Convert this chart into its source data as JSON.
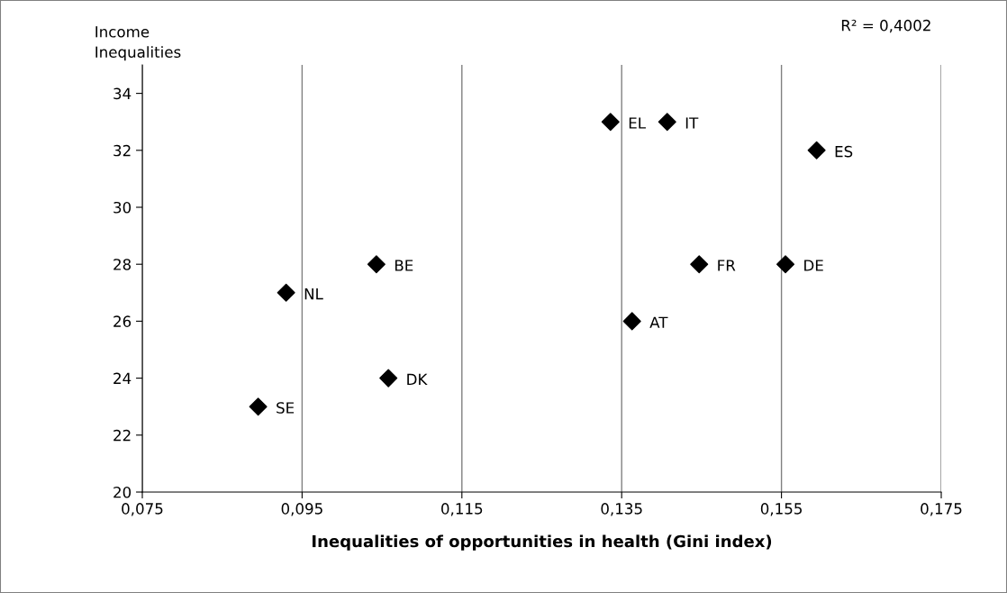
{
  "chart_data": {
    "type": "scatter",
    "xlabel": "Inequalities of opportunities in health (Gini index)",
    "ylabel": "Income\nInequalities",
    "series": [
      {
        "color": "#000000",
        "x": [
          0.0895,
          0.093,
          0.1043,
          0.1058,
          0.1336,
          0.1407,
          0.1363,
          0.1447,
          0.1555,
          0.1594
        ],
        "values": [
          23,
          27,
          28,
          24,
          33,
          33,
          26,
          28,
          28,
          32
        ]
      }
    ],
    "marker": "diamond",
    "xlim": [
      0.075,
      0.175
    ],
    "xticks": [
      {
        "value": 0.075,
        "label": "0,075"
      },
      {
        "value": 0.095,
        "label": "0,095"
      },
      {
        "value": 0.115,
        "label": "0,115"
      },
      {
        "value": 0.135,
        "label": "0,135"
      },
      {
        "value": 0.155,
        "label": "0,155"
      },
      {
        "value": 0.175,
        "label": "0,175"
      }
    ],
    "ylim": [
      20,
      35
    ],
    "yticks": [
      20,
      22,
      24,
      26,
      28,
      30,
      32,
      34
    ],
    "grid": "x",
    "annotations": [
      {
        "text": "SE",
        "x": 0.0895,
        "y": 23
      },
      {
        "text": "NL",
        "x": 0.093,
        "y": 27
      },
      {
        "text": "BE",
        "x": 0.1043,
        "y": 28
      },
      {
        "text": "DK",
        "x": 0.1058,
        "y": 24
      },
      {
        "text": "EL",
        "x": 0.1336,
        "y": 33
      },
      {
        "text": "IT",
        "x": 0.1407,
        "y": 33
      },
      {
        "text": "AT",
        "x": 0.1363,
        "y": 26
      },
      {
        "text": "FR",
        "x": 0.1447,
        "y": 28
      },
      {
        "text": "DE",
        "x": 0.1555,
        "y": 28
      },
      {
        "text": "ES",
        "x": 0.1594,
        "y": 32
      },
      "R² = 0,4002"
    ]
  }
}
